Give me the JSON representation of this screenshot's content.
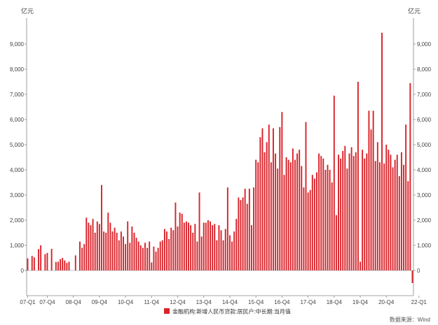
{
  "chart_data": {
    "type": "bar",
    "title": "",
    "y_unit_left": "亿元",
    "y_unit_right": "亿元",
    "ylim": [
      -1000,
      10000
    ],
    "y_ticks": [
      0,
      1000,
      2000,
      3000,
      4000,
      5000,
      6000,
      7000,
      8000,
      9000
    ],
    "y_tick_labels": [
      "0",
      "1,000",
      "2,000",
      "3,000",
      "4,000",
      "5,000",
      "6,000",
      "7,000",
      "8,000",
      "9,000"
    ],
    "x_tick_labels": [
      "07-Q1",
      "07-Q4",
      "08-Q4",
      "09-Q4",
      "10-Q4",
      "11-Q4",
      "12-Q4",
      "13-Q4",
      "14-Q4",
      "15-Q4",
      "16-Q4",
      "17-Q4",
      "18-Q4",
      "19-Q4",
      "20-Q4",
      "22-Q1"
    ],
    "x_tick_positions": [
      0,
      9,
      21,
      33,
      45,
      57,
      69,
      81,
      93,
      105,
      117,
      129,
      141,
      153,
      165,
      180
    ],
    "grid": false,
    "legend_position": "bottom-center",
    "color": "#d9232a",
    "series": [
      {
        "name": "金融机构:新增人民币贷款:居民户:中长期:当月值",
        "values": [
          480,
          0,
          580,
          520,
          0,
          850,
          1000,
          0,
          650,
          700,
          0,
          860,
          0,
          340,
          350,
          450,
          500,
          400,
          300,
          350,
          0,
          0,
          600,
          0,
          1150,
          900,
          1050,
          2100,
          1900,
          1800,
          2050,
          1500,
          1950,
          1850,
          3400,
          1550,
          1500,
          2300,
          1900,
          1550,
          1700,
          1500,
          1200,
          1550,
          1350,
          1050,
          1950,
          1100,
          1750,
          1500,
          1300,
          1150,
          1000,
          900,
          1100,
          900,
          1150,
          320,
          950,
          750,
          900,
          1150,
          1200,
          1650,
          1550,
          1250,
          1700,
          1600,
          2700,
          1750,
          2300,
          2250,
          1900,
          1950,
          1900,
          1800,
          1500,
          1850,
          1150,
          3100,
          1350,
          1900,
          1900,
          2000,
          1950,
          1800,
          1850,
          1200,
          1800,
          1600,
          1200,
          1650,
          3300,
          1400,
          1150,
          1550,
          2050,
          2900,
          2800,
          2900,
          3250,
          2650,
          3250,
          1800,
          3300,
          4400,
          4300,
          5300,
          5650,
          4700,
          5100,
          5800,
          4300,
          5650,
          4650,
          4050,
          5700,
          6300,
          3800,
          4500,
          4400,
          4300,
          4850,
          4400,
          4650,
          4800,
          4150,
          3300,
          5900,
          3100,
          3200,
          3800,
          3650,
          3900,
          4650,
          4550,
          4450,
          4000,
          4200,
          4000,
          3500,
          6950,
          2200,
          4600,
          4450,
          4750,
          4950,
          4050,
          4650,
          4900,
          4550,
          4700,
          7500,
          350,
          4800,
          4450,
          4650,
          6350,
          5600,
          6350,
          4350,
          5100,
          4300,
          9450,
          4250,
          5000,
          4800,
          4600,
          4100,
          4400,
          4600,
          3750,
          4700,
          4200,
          5800,
          3550,
          7450,
          -500
        ]
      }
    ],
    "source": "数据来源：Wind"
  }
}
